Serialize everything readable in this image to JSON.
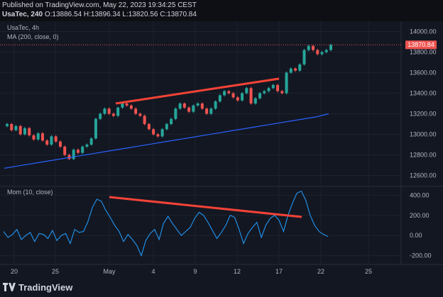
{
  "header": {
    "published": "Published on TradingView.com, May 22, 2023 19:34:25 CEST",
    "symbol_line": "UsaTec, 240",
    "ohlc": "O:13886.54 H:13896.34 L:13820.56 C:13870.84"
  },
  "legend": {
    "symbol": "UsaTec, 4h",
    "ma": "MA (200, close, 0)",
    "mom": "Mom (10, close)"
  },
  "brand": {
    "name": "TradingView"
  },
  "colors": {
    "background": "#131722",
    "up": "#26a69a",
    "down": "#ef5350",
    "ma": "#2962ff",
    "mom": "#2196f3",
    "trendline": "#f44336",
    "price_tag": "#ef5350"
  },
  "chart_data": [
    {
      "type": "candlestick",
      "ylim": [
        12500,
        14100
      ],
      "y_ticks": [
        "12600.00",
        "12800.00",
        "13000.00",
        "13200.00",
        "13400.00",
        "13600.00",
        "13800.00",
        "14000.00"
      ],
      "last_price": "13870.84",
      "x_ticks": [
        "20",
        "25",
        "May",
        "4",
        "9",
        "12",
        "17",
        "22",
        "25"
      ],
      "series": [
        {
          "name": "UsaTec",
          "close": [
            13100,
            13040,
            13080,
            13000,
            13060,
            12990,
            12950,
            13010,
            12940,
            12900,
            12980,
            12930,
            12880,
            12800,
            12760,
            12850,
            12820,
            12880,
            12900,
            12960,
            13150,
            13200,
            13250,
            13200,
            13180,
            13260,
            13300,
            13280,
            13250,
            13200,
            13180,
            13100,
            13050,
            13000,
            12980,
            13050,
            13100,
            13150,
            13250,
            13300,
            13260,
            13220,
            13280,
            13300,
            13250,
            13200,
            13250,
            13320,
            13380,
            13420,
            13400,
            13360,
            13330,
            13400,
            13450,
            13300,
            13350,
            13400,
            13420,
            13450,
            13480,
            13420,
            13400,
            13600,
            13640,
            13620,
            13680,
            13820,
            13860,
            13820,
            13780,
            13800,
            13820,
            13870
          ],
          "ma": [
            12670,
            12690,
            12710,
            12730,
            12750,
            12770,
            12790,
            12810,
            12830,
            12850,
            12870,
            12890,
            12910,
            12930,
            12950,
            12970,
            12990,
            13010,
            13030,
            13050,
            13070,
            13090,
            13110,
            13130,
            13150,
            13170,
            13200
          ]
        }
      ]
    },
    {
      "type": "line",
      "ylim": [
        -280,
        480
      ],
      "y_ticks": [
        "400.00",
        "200.00",
        "0.00",
        "-200.00"
      ],
      "x_ticks": [
        "20",
        "25",
        "May",
        "4",
        "9",
        "12",
        "17",
        "22",
        "25"
      ],
      "series": [
        {
          "name": "Mom (10, close)",
          "values": [
            40,
            -20,
            10,
            60,
            -40,
            0,
            30,
            -60,
            20,
            10,
            -30,
            50,
            -50,
            0,
            20,
            -80,
            60,
            30,
            40,
            140,
            280,
            360,
            340,
            250,
            180,
            100,
            40,
            -60,
            10,
            -40,
            -100,
            -200,
            -50,
            20,
            60,
            -40,
            120,
            190,
            120,
            60,
            0,
            40,
            80,
            170,
            230,
            200,
            130,
            50,
            -30,
            30,
            100,
            200,
            180,
            60,
            -80,
            20,
            80,
            130,
            -20,
            100,
            170,
            200,
            150,
            40,
            200,
            320,
            420,
            440,
            350,
            200,
            100,
            40,
            10,
            -10
          ]
        }
      ]
    }
  ]
}
